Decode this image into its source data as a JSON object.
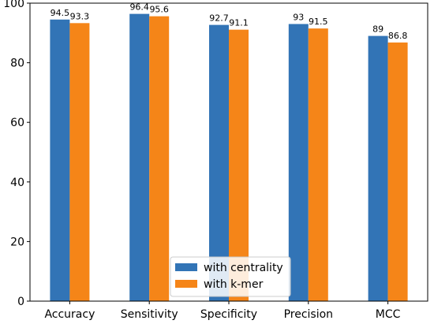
{
  "chart_data": {
    "type": "bar",
    "categories": [
      "Accuracy",
      "Sensitivity",
      "Specificity",
      "Precision",
      "MCC"
    ],
    "series": [
      {
        "name": "with centrality",
        "values": [
          94.5,
          96.4,
          92.7,
          93,
          89
        ],
        "labels": [
          "94.5",
          "96.4",
          "92.7",
          "93",
          "89"
        ],
        "color": "#3274b6"
      },
      {
        "name": "with k-mer",
        "values": [
          93.3,
          95.6,
          91.1,
          91.5,
          86.8
        ],
        "labels": [
          "93.3",
          "95.6",
          "91.1",
          "91.5",
          "86.8"
        ],
        "color": "#f58518"
      }
    ],
    "ylim": [
      0,
      100
    ],
    "yticks": [
      "0",
      "20",
      "40",
      "60",
      "80",
      "100"
    ],
    "ytick_values": [
      0,
      20,
      40,
      60,
      80,
      100
    ],
    "legend_position": "bottom-center",
    "grid": false
  }
}
